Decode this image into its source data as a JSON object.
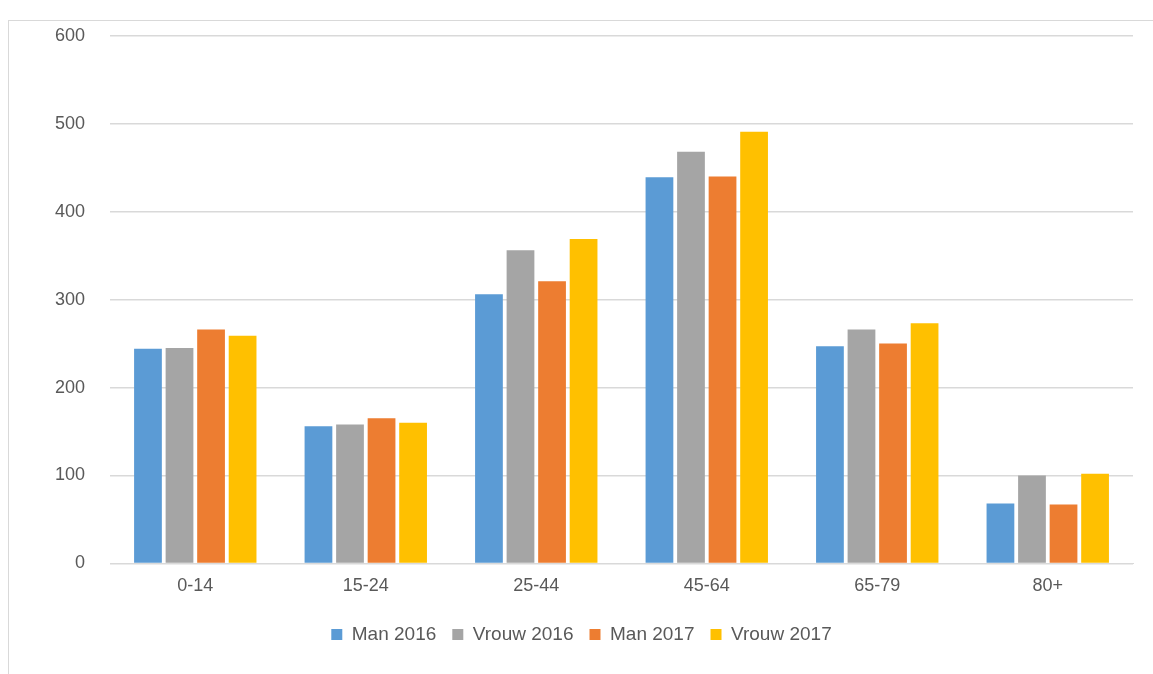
{
  "chart_data": {
    "type": "bar",
    "categories": [
      "0-14",
      "15-24",
      "25-44",
      "45-64",
      "65-79",
      "80+"
    ],
    "series": [
      {
        "name": "Man 2016",
        "color": "#5b9bd5",
        "values": [
          244,
          156,
          306,
          439,
          247,
          68
        ]
      },
      {
        "name": "Vrouw 2016",
        "color": "#a5a5a5",
        "values": [
          245,
          158,
          356,
          468,
          266,
          100
        ]
      },
      {
        "name": "Man 2017",
        "color": "#ed7d31",
        "values": [
          266,
          165,
          321,
          440,
          250,
          67
        ]
      },
      {
        "name": "Vrouw 2017",
        "color": "#ffc000",
        "values": [
          259,
          160,
          369,
          491,
          273,
          102
        ]
      }
    ],
    "ylim": [
      0,
      600
    ],
    "yticks": [
      0,
      100,
      200,
      300,
      400,
      500,
      600
    ],
    "grid": "y",
    "legend": "bottom"
  }
}
